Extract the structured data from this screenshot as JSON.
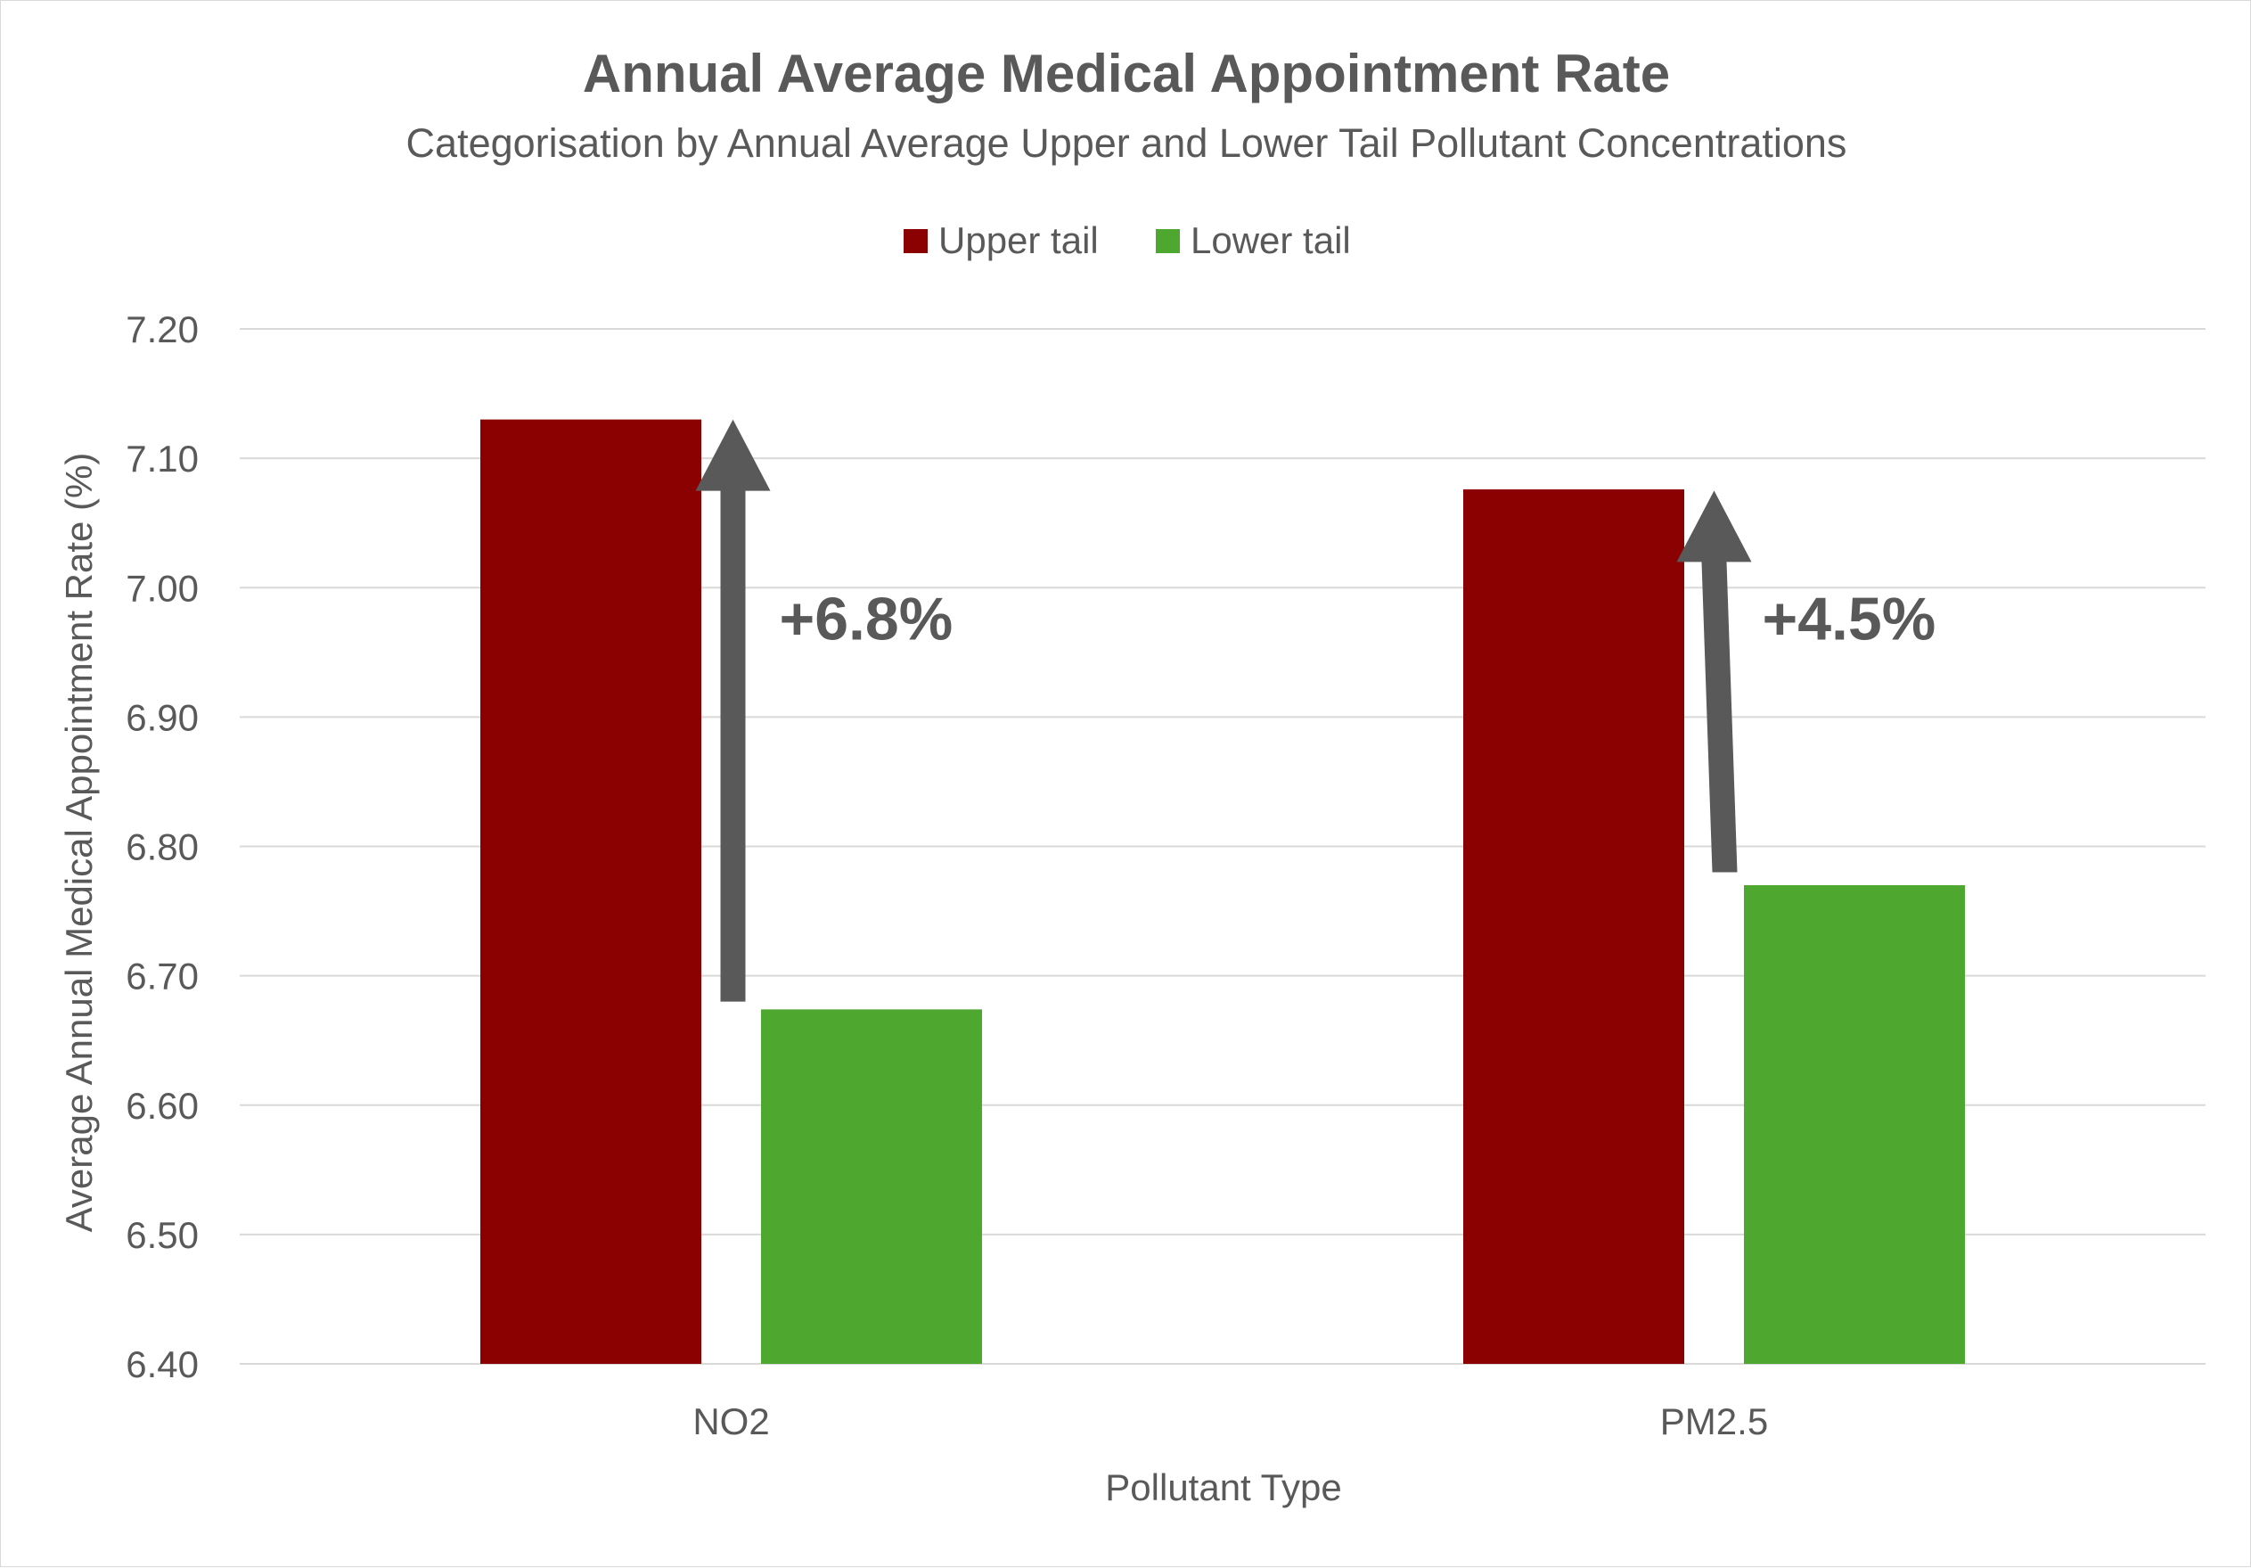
{
  "chart_data": {
    "type": "bar",
    "title": "Annual Average Medical Appointment Rate",
    "subtitle": "Categorisation by Annual Average Upper and Lower Tail  Pollutant Concentrations",
    "xlabel": "Pollutant Type",
    "ylabel": "Average Annual  Medical Appointment Rate (%)",
    "categories": [
      "NO2",
      "PM2.5"
    ],
    "series": [
      {
        "name": "Upper tail",
        "color": "#8b0000",
        "values": [
          7.13,
          7.076
        ]
      },
      {
        "name": "Lower tail",
        "color": "#4ea72e",
        "values": [
          6.674,
          6.77
        ]
      }
    ],
    "ylim": [
      6.4,
      7.2
    ],
    "yticks": [
      "6.40",
      "6.50",
      "6.60",
      "6.70",
      "6.80",
      "6.90",
      "7.00",
      "7.10",
      "7.20"
    ],
    "legend_position": "top",
    "grid": true,
    "annotations": [
      {
        "category": "NO2",
        "text": "+6.8%",
        "arrow_from": 6.68,
        "arrow_to": 7.13
      },
      {
        "category": "PM2.5",
        "text": "+4.5%",
        "arrow_from": 6.78,
        "arrow_to": 7.075
      }
    ],
    "colors": {
      "text": "#595959",
      "grid": "#d9d9d9",
      "arrow": "#595959"
    }
  }
}
